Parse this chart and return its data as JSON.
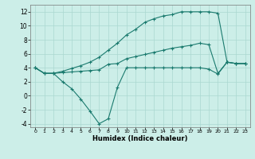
{
  "xlabel": "Humidex (Indice chaleur)",
  "background_color": "#cceee8",
  "line_color": "#1a7a6e",
  "grid_color": "#aad8d0",
  "xlim": [
    -0.5,
    23.5
  ],
  "ylim": [
    -4.5,
    13
  ],
  "xticks": [
    0,
    1,
    2,
    3,
    4,
    5,
    6,
    7,
    8,
    9,
    10,
    11,
    12,
    13,
    14,
    15,
    16,
    17,
    18,
    19,
    20,
    21,
    22,
    23
  ],
  "yticks": [
    -4,
    -2,
    0,
    2,
    4,
    6,
    8,
    10,
    12
  ],
  "series1_x": [
    0,
    1,
    2,
    3,
    4,
    5,
    6,
    7,
    8,
    9,
    10,
    11,
    12,
    13,
    14,
    15,
    16,
    17,
    18,
    19,
    20,
    21,
    22,
    23
  ],
  "series1_y": [
    4,
    3.2,
    3.2,
    3.3,
    3.4,
    3.5,
    3.6,
    3.7,
    4.5,
    4.6,
    5.3,
    5.6,
    5.9,
    6.2,
    6.5,
    6.8,
    7.0,
    7.2,
    7.5,
    7.3,
    3.2,
    4.8,
    4.6,
    4.6
  ],
  "series2_x": [
    0,
    1,
    2,
    3,
    4,
    5,
    6,
    7,
    8,
    9,
    10,
    11,
    12,
    13,
    14,
    15,
    16,
    17,
    18,
    19,
    20,
    21,
    22,
    23
  ],
  "series2_y": [
    4,
    3.2,
    3.2,
    3.5,
    3.9,
    4.3,
    4.8,
    5.5,
    6.5,
    7.5,
    8.7,
    9.5,
    10.5,
    11.0,
    11.4,
    11.6,
    12.0,
    12.0,
    12.0,
    12.0,
    11.8,
    4.8,
    4.6,
    4.6
  ],
  "series3_x": [
    0,
    1,
    2,
    3,
    4,
    5,
    6,
    7,
    8,
    9,
    10,
    11,
    12,
    13,
    14,
    15,
    16,
    17,
    18,
    19,
    20,
    21,
    22,
    23
  ],
  "series3_y": [
    4,
    3.2,
    3.2,
    2.0,
    1.0,
    -0.5,
    -2.2,
    -4.0,
    -3.3,
    1.2,
    4.0,
    4.0,
    4.0,
    4.0,
    4.0,
    4.0,
    4.0,
    4.0,
    4.0,
    3.8,
    3.1,
    4.8,
    4.6,
    4.6
  ]
}
